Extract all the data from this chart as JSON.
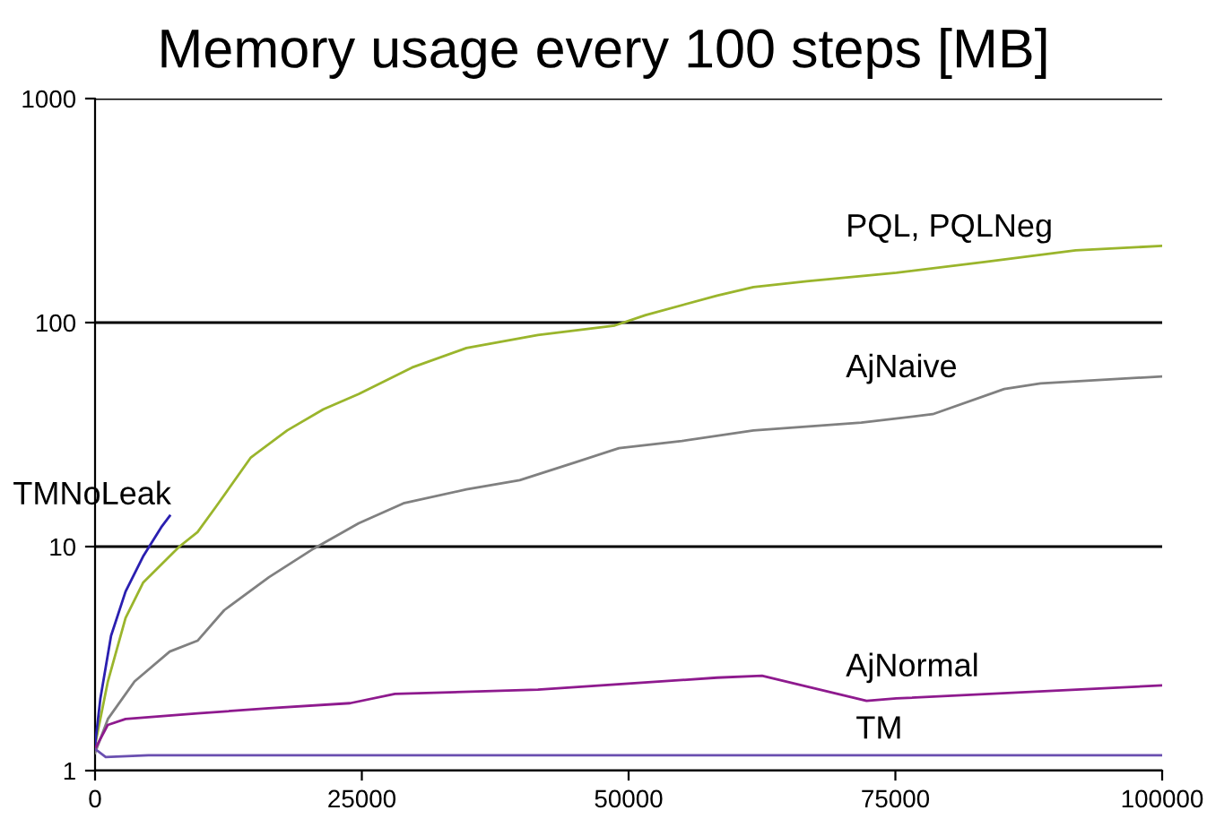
{
  "chart_data": {
    "type": "line",
    "title": "Memory usage every 100 steps [MB]",
    "log": "y",
    "xlim": [
      0,
      100000
    ],
    "ylim": [
      1,
      1000
    ],
    "xticks": [
      0,
      25000,
      50000,
      75000,
      100000
    ],
    "yticks": [
      1,
      10,
      100,
      1000
    ],
    "grid": "y",
    "legend": false,
    "marker": "none",
    "line_style": "solid",
    "series": [
      {
        "name": "PQL, PQLNeg",
        "color": "#9ab52c",
        "x": [
          0,
          1200,
          2860,
          4500,
          7900,
          9600,
          11300,
          14600,
          18000,
          21400,
          24700,
          29700,
          34800,
          41500,
          48700,
          51600,
          58300,
          61700,
          66700,
          75100,
          83500,
          91900,
          100000
        ],
        "values": [
          1.3,
          2.5,
          4.8,
          6.9,
          10,
          11.6,
          15,
          25,
          33,
          41,
          48,
          63,
          77,
          88,
          97,
          108,
          132,
          144,
          153,
          167,
          187,
          210,
          220
        ]
      },
      {
        "name": "AjNaive",
        "color": "#808080",
        "x": [
          0,
          1200,
          3700,
          7000,
          9600,
          12100,
          16300,
          20500,
          24700,
          28900,
          34800,
          39800,
          44900,
          49100,
          55000,
          61700,
          71800,
          78500,
          85200,
          88600,
          100000
        ],
        "values": [
          1.2,
          1.7,
          2.5,
          3.4,
          3.8,
          5.2,
          7.3,
          9.8,
          12.7,
          15.6,
          18,
          19.8,
          23.7,
          27.5,
          29.6,
          33,
          35.8,
          39,
          50.5,
          53.5,
          57.5
        ]
      },
      {
        "name": "TMNoLeak",
        "color": "#2a1fb0",
        "x": [
          0,
          500,
          1500,
          2860,
          4540,
          6200,
          7000
        ],
        "values": [
          1.3,
          2.1,
          4,
          6.3,
          9.1,
          12.2,
          13.7
        ]
      },
      {
        "name": "AjNormal",
        "color": "#8e1a8e",
        "x": [
          0,
          1200,
          2860,
          9600,
          16300,
          23900,
          28100,
          41500,
          58300,
          62500,
          72300,
          75100,
          100000
        ],
        "values": [
          1.25,
          1.6,
          1.7,
          1.8,
          1.9,
          2.0,
          2.2,
          2.3,
          2.6,
          2.65,
          2.05,
          2.1,
          2.4
        ]
      },
      {
        "name": "TM",
        "color": "#6a4fb0",
        "x": [
          0,
          1000,
          5000,
          50000,
          100000
        ],
        "values": [
          1.25,
          1.15,
          1.17,
          1.17,
          1.17
        ]
      }
    ]
  }
}
